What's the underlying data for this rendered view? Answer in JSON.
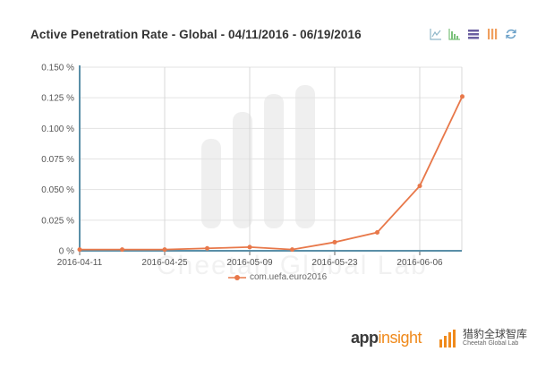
{
  "header": {
    "title": "Active Penetration Rate - Global - 04/11/2016 - 06/19/2016"
  },
  "toolbar": {
    "icons": [
      "line-chart-icon",
      "bar-chart-icon",
      "stack-icon",
      "tiled-icon",
      "refresh-icon"
    ],
    "colors": {
      "line": "#8fb7c9",
      "bar": "#7cc27c",
      "stack": "#6b5fa0",
      "tiled": "#f0a060",
      "refresh": "#6aa0c8"
    }
  },
  "chart_data": {
    "type": "line",
    "title": "Active Penetration Rate - Global - 04/11/2016 - 06/19/2016",
    "xlabel": "",
    "ylabel": "",
    "x": [
      "2016-04-11",
      "2016-04-18",
      "2016-04-25",
      "2016-05-02",
      "2016-05-09",
      "2016-05-16",
      "2016-05-23",
      "2016-05-30",
      "2016-06-06",
      "2016-06-13"
    ],
    "x_tick_labels": [
      "2016-04-11",
      "2016-04-25",
      "2016-05-09",
      "2016-05-23",
      "2016-06-06"
    ],
    "y_tick_labels": [
      "0 %",
      "0.025 %",
      "0.050 %",
      "0.075 %",
      "0.100 %",
      "0.125 %",
      "0.150 %"
    ],
    "y_ticks": [
      0,
      0.025,
      0.05,
      0.075,
      0.1,
      0.125,
      0.15
    ],
    "ylim": [
      0,
      0.15
    ],
    "grid": true,
    "legend_position": "bottom",
    "series": [
      {
        "name": "com.uefa.euro2016",
        "color": "#e8784a",
        "values": [
          0.001,
          0.001,
          0.001,
          0.002,
          0.003,
          0.001,
          0.007,
          0.015,
          0.053,
          0.126
        ]
      }
    ]
  },
  "legend": {
    "label": "com.uefa.euro2016"
  },
  "branding": {
    "app_part1": "app",
    "app_part2": "insight",
    "cheetah_cn": "猎豹全球智库",
    "cheetah_en": "Cheetah Global Lab",
    "watermark": "Cheetah Global Lab"
  }
}
